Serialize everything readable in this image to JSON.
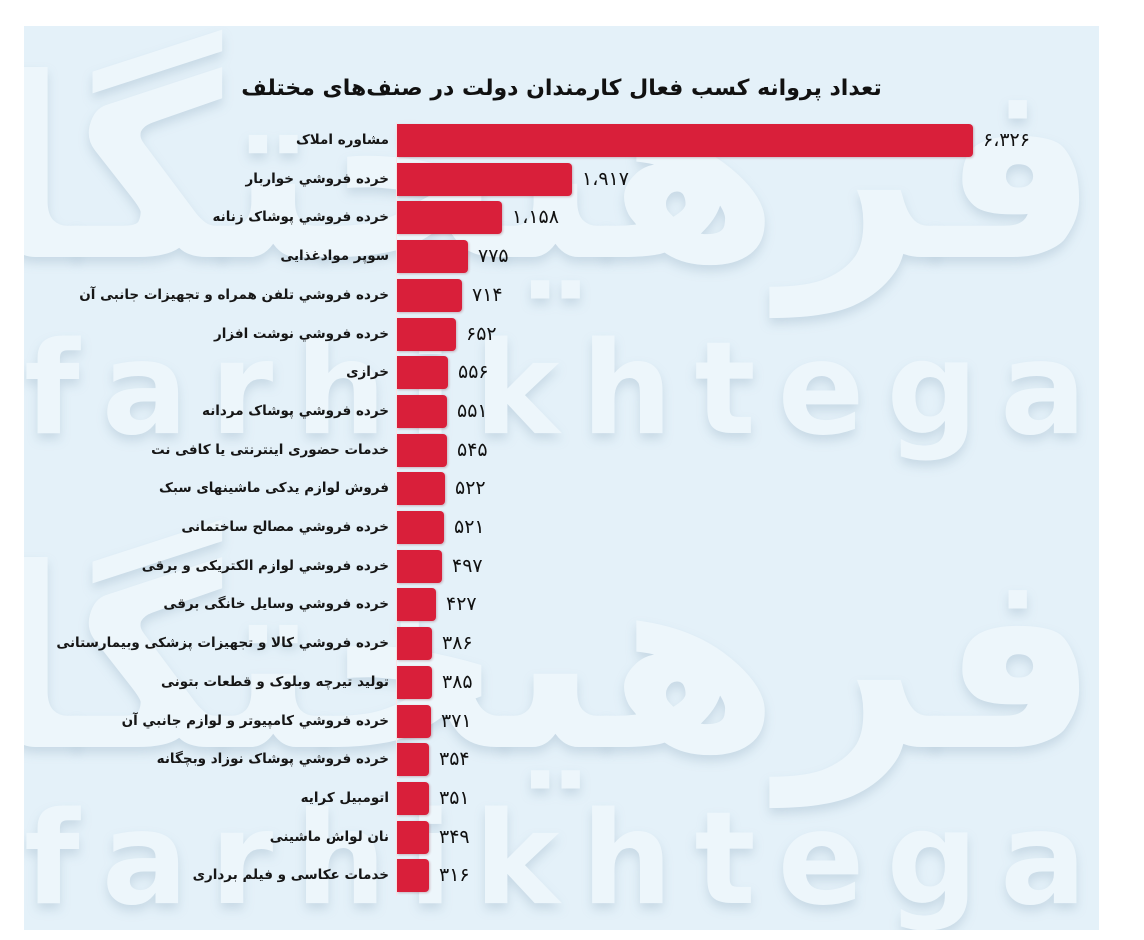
{
  "title": "تعداد پروانه کسب فعال کارمندان دولت در صنف‌های مختلف",
  "watermark": {
    "fa": "فرهیختگان",
    "en": "farhikhtegan"
  },
  "colors": {
    "bar": "#d91f3a",
    "background": "#e4f1f9",
    "text": "#111111"
  },
  "rows": [
    {
      "label": "مشاوره املاک",
      "value_label": "۶،۳۲۶",
      "value": 6326
    },
    {
      "label": "خرده فروشي خواربار",
      "value_label": "۱،۹۱۷",
      "value": 1917
    },
    {
      "label": "خرده فروشي پوشاک زنانه",
      "value_label": "۱،۱۵۸",
      "value": 1158
    },
    {
      "label": "سوپر موادغذایی",
      "value_label": "۷۷۵",
      "value": 775
    },
    {
      "label": "خرده فروشي تلفن همراه و تجهیزات جانبی آن",
      "value_label": "۷۱۴",
      "value": 714
    },
    {
      "label": "خرده فروشي نوشت افزار",
      "value_label": "۶۵۲",
      "value": 652
    },
    {
      "label": "خرازی",
      "value_label": "۵۵۶",
      "value": 556
    },
    {
      "label": "خرده فروشي پوشاک مردانه",
      "value_label": "۵۵۱",
      "value": 551
    },
    {
      "label": "خدمات حضوری اینترنتی یا کافی نت",
      "value_label": "۵۴۵",
      "value": 545
    },
    {
      "label": "فروش لوازم یدکی ماشینهای سبک",
      "value_label": "۵۲۲",
      "value": 522
    },
    {
      "label": "خرده فروشي مصالح ساختمانی",
      "value_label": "۵۲۱",
      "value": 521
    },
    {
      "label": "خرده فروشي لوازم الکتریکی و برقی",
      "value_label": "۴۹۷",
      "value": 497
    },
    {
      "label": "خرده فروشي وسایل خانگی برقی",
      "value_label": "۴۲۷",
      "value": 427
    },
    {
      "label": "خرده فروشي کالا و تجهیزات پزشکی وبیمارستانی",
      "value_label": "۳۸۶",
      "value": 386
    },
    {
      "label": "تولید تیرچه وبلوک و قطعات بتونی",
      "value_label": "۳۸۵",
      "value": 385
    },
    {
      "label": "خرده فروشي کامپیوتر و لوازم جانبي آن",
      "value_label": "۳۷۱",
      "value": 371
    },
    {
      "label": "خرده فروشي پوشاک نوزاد وبچگانه",
      "value_label": "۳۵۴",
      "value": 354
    },
    {
      "label": "اتومبیل کرایه",
      "value_label": "۳۵۱",
      "value": 351
    },
    {
      "label": "نان لواش ماشینی",
      "value_label": "۳۴۹",
      "value": 349
    },
    {
      "label": "خدمات عکاسی و فیلم برداری",
      "value_label": "۳۱۶",
      "value": 316
    }
  ],
  "chart_data": {
    "type": "bar",
    "orientation": "horizontal",
    "title": "تعداد پروانه کسب فعال کارمندان دولت در صنف‌های مختلف",
    "xlabel": "",
    "ylabel": "",
    "grid": false,
    "legend": null,
    "xlim": [
      0,
      6326
    ],
    "categories": [
      "مشاوره املاک",
      "خرده فروشي خواربار",
      "خرده فروشي پوشاک زنانه",
      "سوپر موادغذایی",
      "خرده فروشي تلفن همراه و تجهیزات جانبی آن",
      "خرده فروشي نوشت افزار",
      "خرازی",
      "خرده فروشي پوشاک مردانه",
      "خدمات حضوری اینترنتی یا کافی نت",
      "فروش لوازم یدکی ماشینهای سبک",
      "خرده فروشي مصالح ساختمانی",
      "خرده فروشي لوازم الکتریکی و برقی",
      "خرده فروشي وسایل خانگی برقی",
      "خرده فروشي کالا و تجهیزات پزشکی وبیمارستانی",
      "تولید تیرچه وبلوک و قطعات بتونی",
      "خرده فروشي کامپیوتر و لوازم جانبي آن",
      "خرده فروشي پوشاک نوزاد وبچگانه",
      "اتومبیل کرایه",
      "نان لواش ماشینی",
      "خدمات عکاسی و فیلم برداری"
    ],
    "values": [
      6326,
      1917,
      1158,
      775,
      714,
      652,
      556,
      551,
      545,
      522,
      521,
      497,
      427,
      386,
      385,
      371,
      354,
      351,
      349,
      316
    ]
  }
}
